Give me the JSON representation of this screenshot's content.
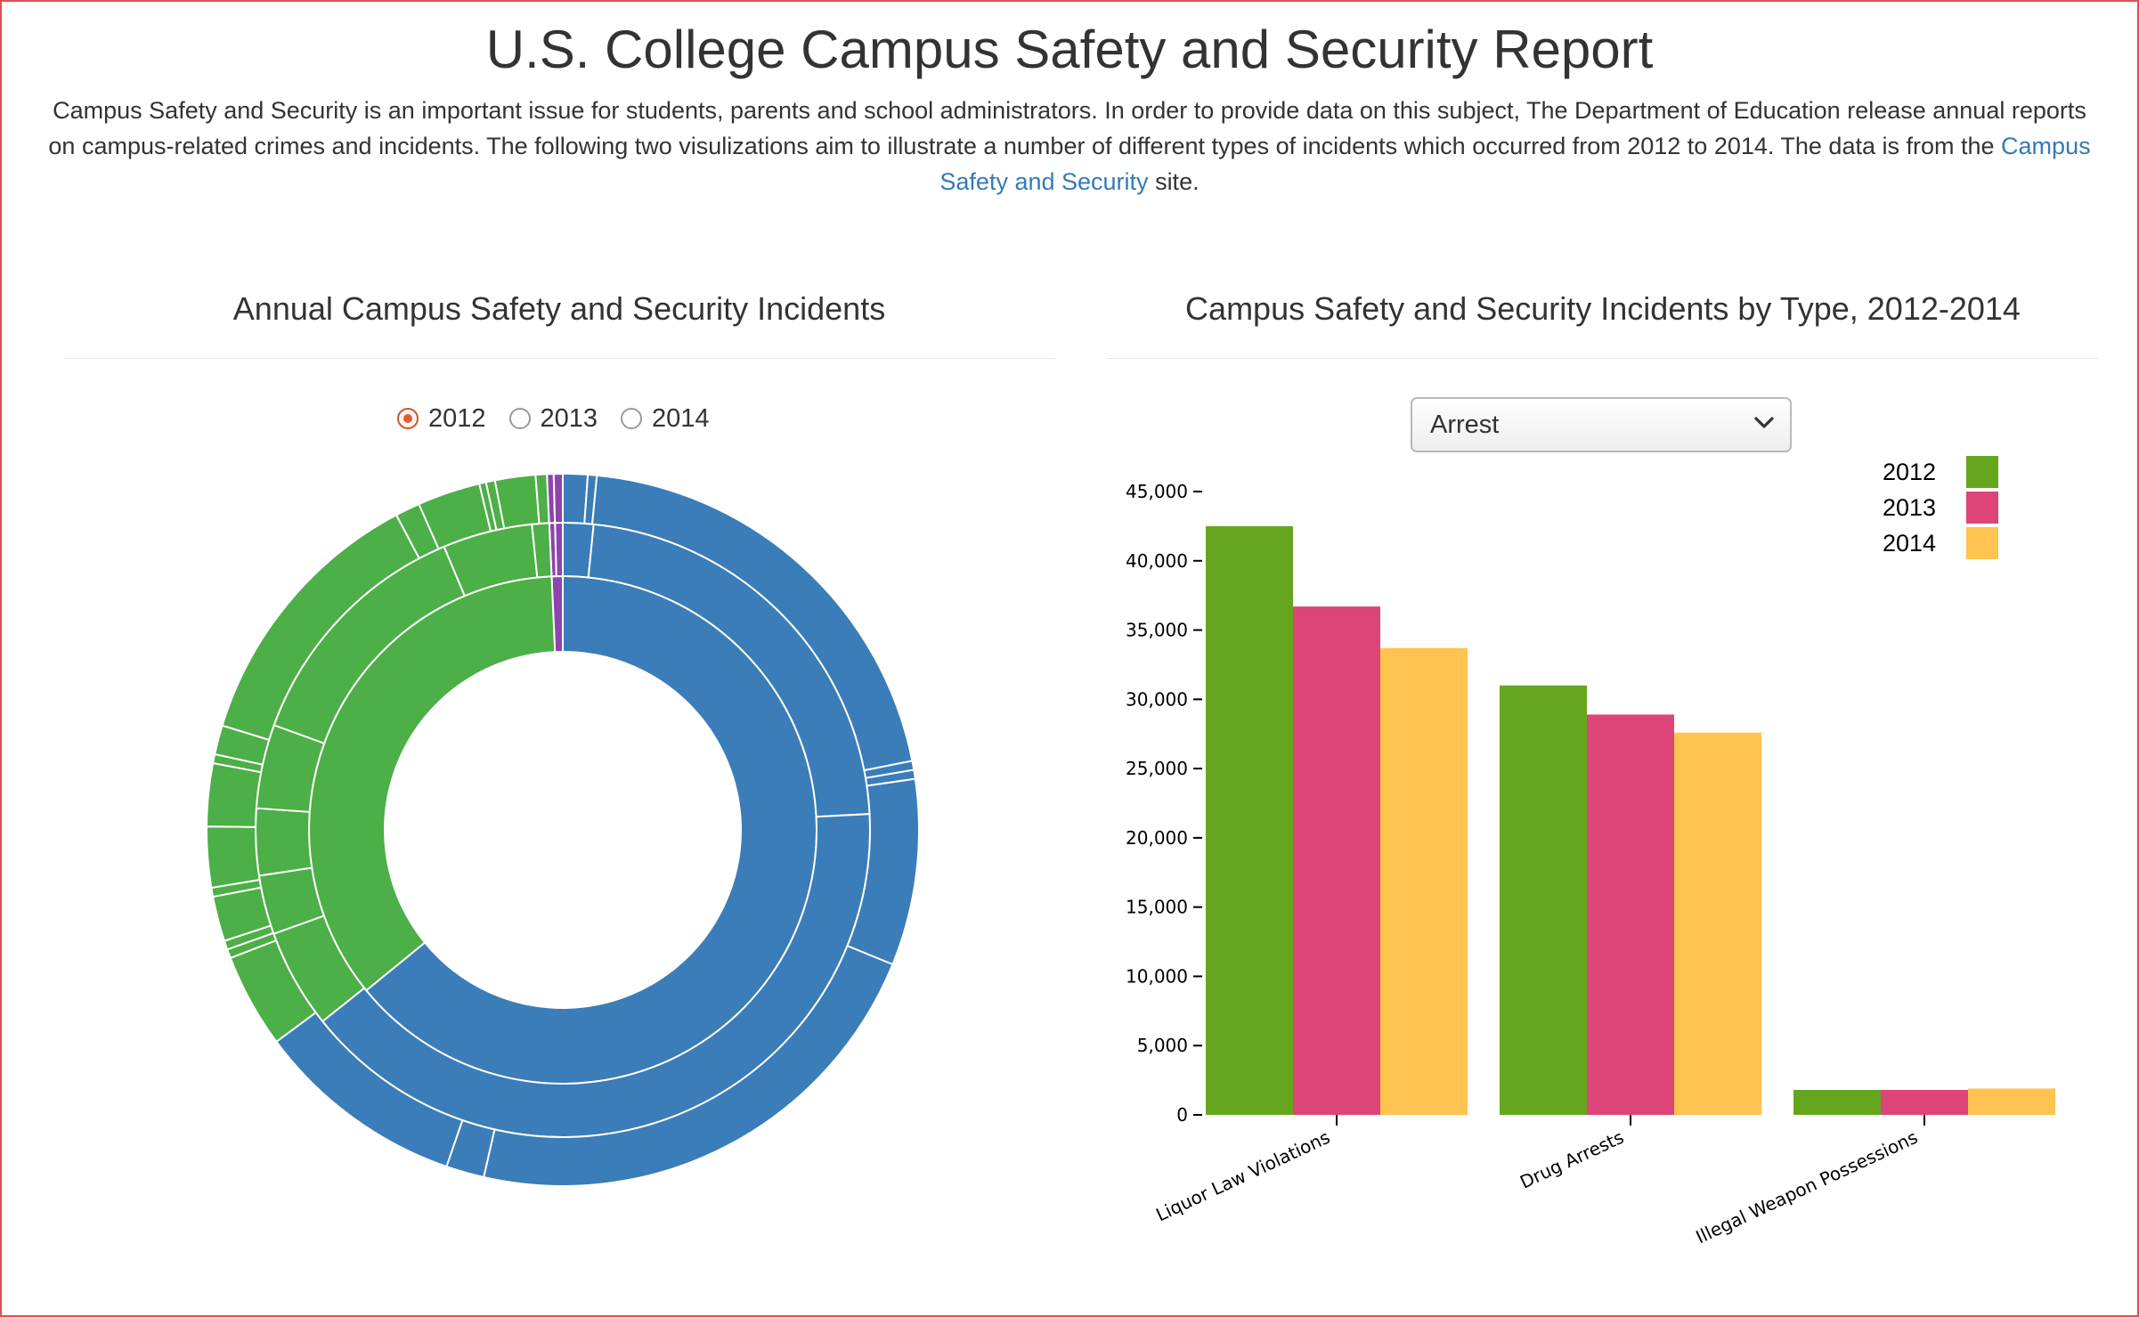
{
  "header": {
    "title": "U.S. College Campus Safety and Security Report",
    "intro_text": "Campus Safety and Security is an important issue for students, parents and school administrators. In order to provide data on this subject, The Department of Education release annual reports on campus-related crimes and incidents. The following two visulizations aim to illustrate a number of different types of incidents which occurred from 2012 to 2014. The data is from the",
    "intro_link": "Campus Safety and Security",
    "intro_suffix": "site."
  },
  "left_panel": {
    "title": "Annual Campus Safety and Security Incidents",
    "year_options": [
      "2012",
      "2013",
      "2014"
    ],
    "selected_year": "2012"
  },
  "right_panel": {
    "title": "Campus Safety and Security Incidents by Type, 2012-2014",
    "dropdown_value": "Arrest"
  },
  "colors": {
    "sunburst_blue": "#3a7db8",
    "sunburst_green": "#4caf47",
    "sunburst_purple": "#8e44ad",
    "radio_selected": "#e05d34",
    "link": "#337ab7"
  },
  "chart_data": [
    {
      "type": "sunburst",
      "selected_year": "2012",
      "rings": [
        {
          "ring": "inner",
          "segments": [
            {
              "color": "purple",
              "share": 0.007
            },
            {
              "color": "blue",
              "share": 0.641
            },
            {
              "color": "green",
              "share": 0.352
            }
          ]
        },
        {
          "ring": "middle",
          "segments": [
            {
              "color": "purple",
              "share": 0.003
            },
            {
              "color": "purple",
              "share": 0.004
            },
            {
              "color": "blue",
              "share": 0.016
            },
            {
              "color": "blue",
              "share": 0.225
            },
            {
              "color": "blue",
              "share": 0.4
            },
            {
              "color": "green",
              "share": 0.052
            },
            {
              "color": "green",
              "share": 0.031
            },
            {
              "color": "green",
              "share": 0.035
            },
            {
              "color": "green",
              "share": 0.044
            },
            {
              "color": "green",
              "share": 0.131
            },
            {
              "color": "green",
              "share": 0.047
            },
            {
              "color": "green",
              "share": 0.009
            }
          ]
        },
        {
          "ring": "outer",
          "segments": [
            {
              "color": "purple",
              "share": 0.003
            },
            {
              "color": "purple",
              "share": 0.004
            },
            {
              "color": "blue",
              "share": 0.011
            },
            {
              "color": "blue",
              "share": 0.004
            },
            {
              "color": "blue",
              "share": 0.2
            },
            {
              "color": "blue",
              "share": 0.004
            },
            {
              "color": "blue",
              "share": 0.004
            },
            {
              "color": "blue",
              "share": 0.083
            },
            {
              "color": "blue",
              "share": 0.22
            },
            {
              "color": "blue",
              "share": 0.017
            },
            {
              "color": "blue",
              "share": 0.094
            },
            {
              "color": "green",
              "share": 0.042
            },
            {
              "color": "green",
              "share": 0.004
            },
            {
              "color": "green",
              "share": 0.004
            },
            {
              "color": "green",
              "share": 0.02
            },
            {
              "color": "green",
              "share": 0.004
            },
            {
              "color": "green",
              "share": 0.027
            },
            {
              "color": "green",
              "share": 0.028
            },
            {
              "color": "green",
              "share": 0.004
            },
            {
              "color": "green",
              "share": 0.013
            },
            {
              "color": "green",
              "share": 0.123
            },
            {
              "color": "green",
              "share": 0.011
            },
            {
              "color": "green",
              "share": 0.028
            },
            {
              "color": "green",
              "share": 0.003
            },
            {
              "color": "green",
              "share": 0.004
            },
            {
              "color": "green",
              "share": 0.018
            },
            {
              "color": "green",
              "share": 0.005
            }
          ]
        }
      ]
    },
    {
      "type": "bar",
      "title": "Campus Safety and Security Incidents by Type, 2012-2014",
      "categories": [
        "Liquor Law Violations",
        "Drug Arrests",
        "Illegal Weapon Possessions"
      ],
      "series": [
        {
          "name": "2012",
          "color": "#66a61e",
          "values": [
            42500,
            31000,
            1800
          ]
        },
        {
          "name": "2013",
          "color": "#dd4477",
          "values": [
            36700,
            28900,
            1800
          ]
        },
        {
          "name": "2014",
          "color": "#ffc34f",
          "values": [
            33700,
            27600,
            1900
          ]
        }
      ],
      "ylim": [
        0,
        45000
      ],
      "yticks": [
        0,
        5000,
        10000,
        15000,
        20000,
        25000,
        30000,
        35000,
        40000,
        45000
      ],
      "ytick_labels": [
        "0",
        "5,000",
        "10,000",
        "15,000",
        "20,000",
        "25,000",
        "30,000",
        "35,000",
        "40,000",
        "45,000"
      ],
      "legend": "top-right",
      "grid": false
    }
  ]
}
